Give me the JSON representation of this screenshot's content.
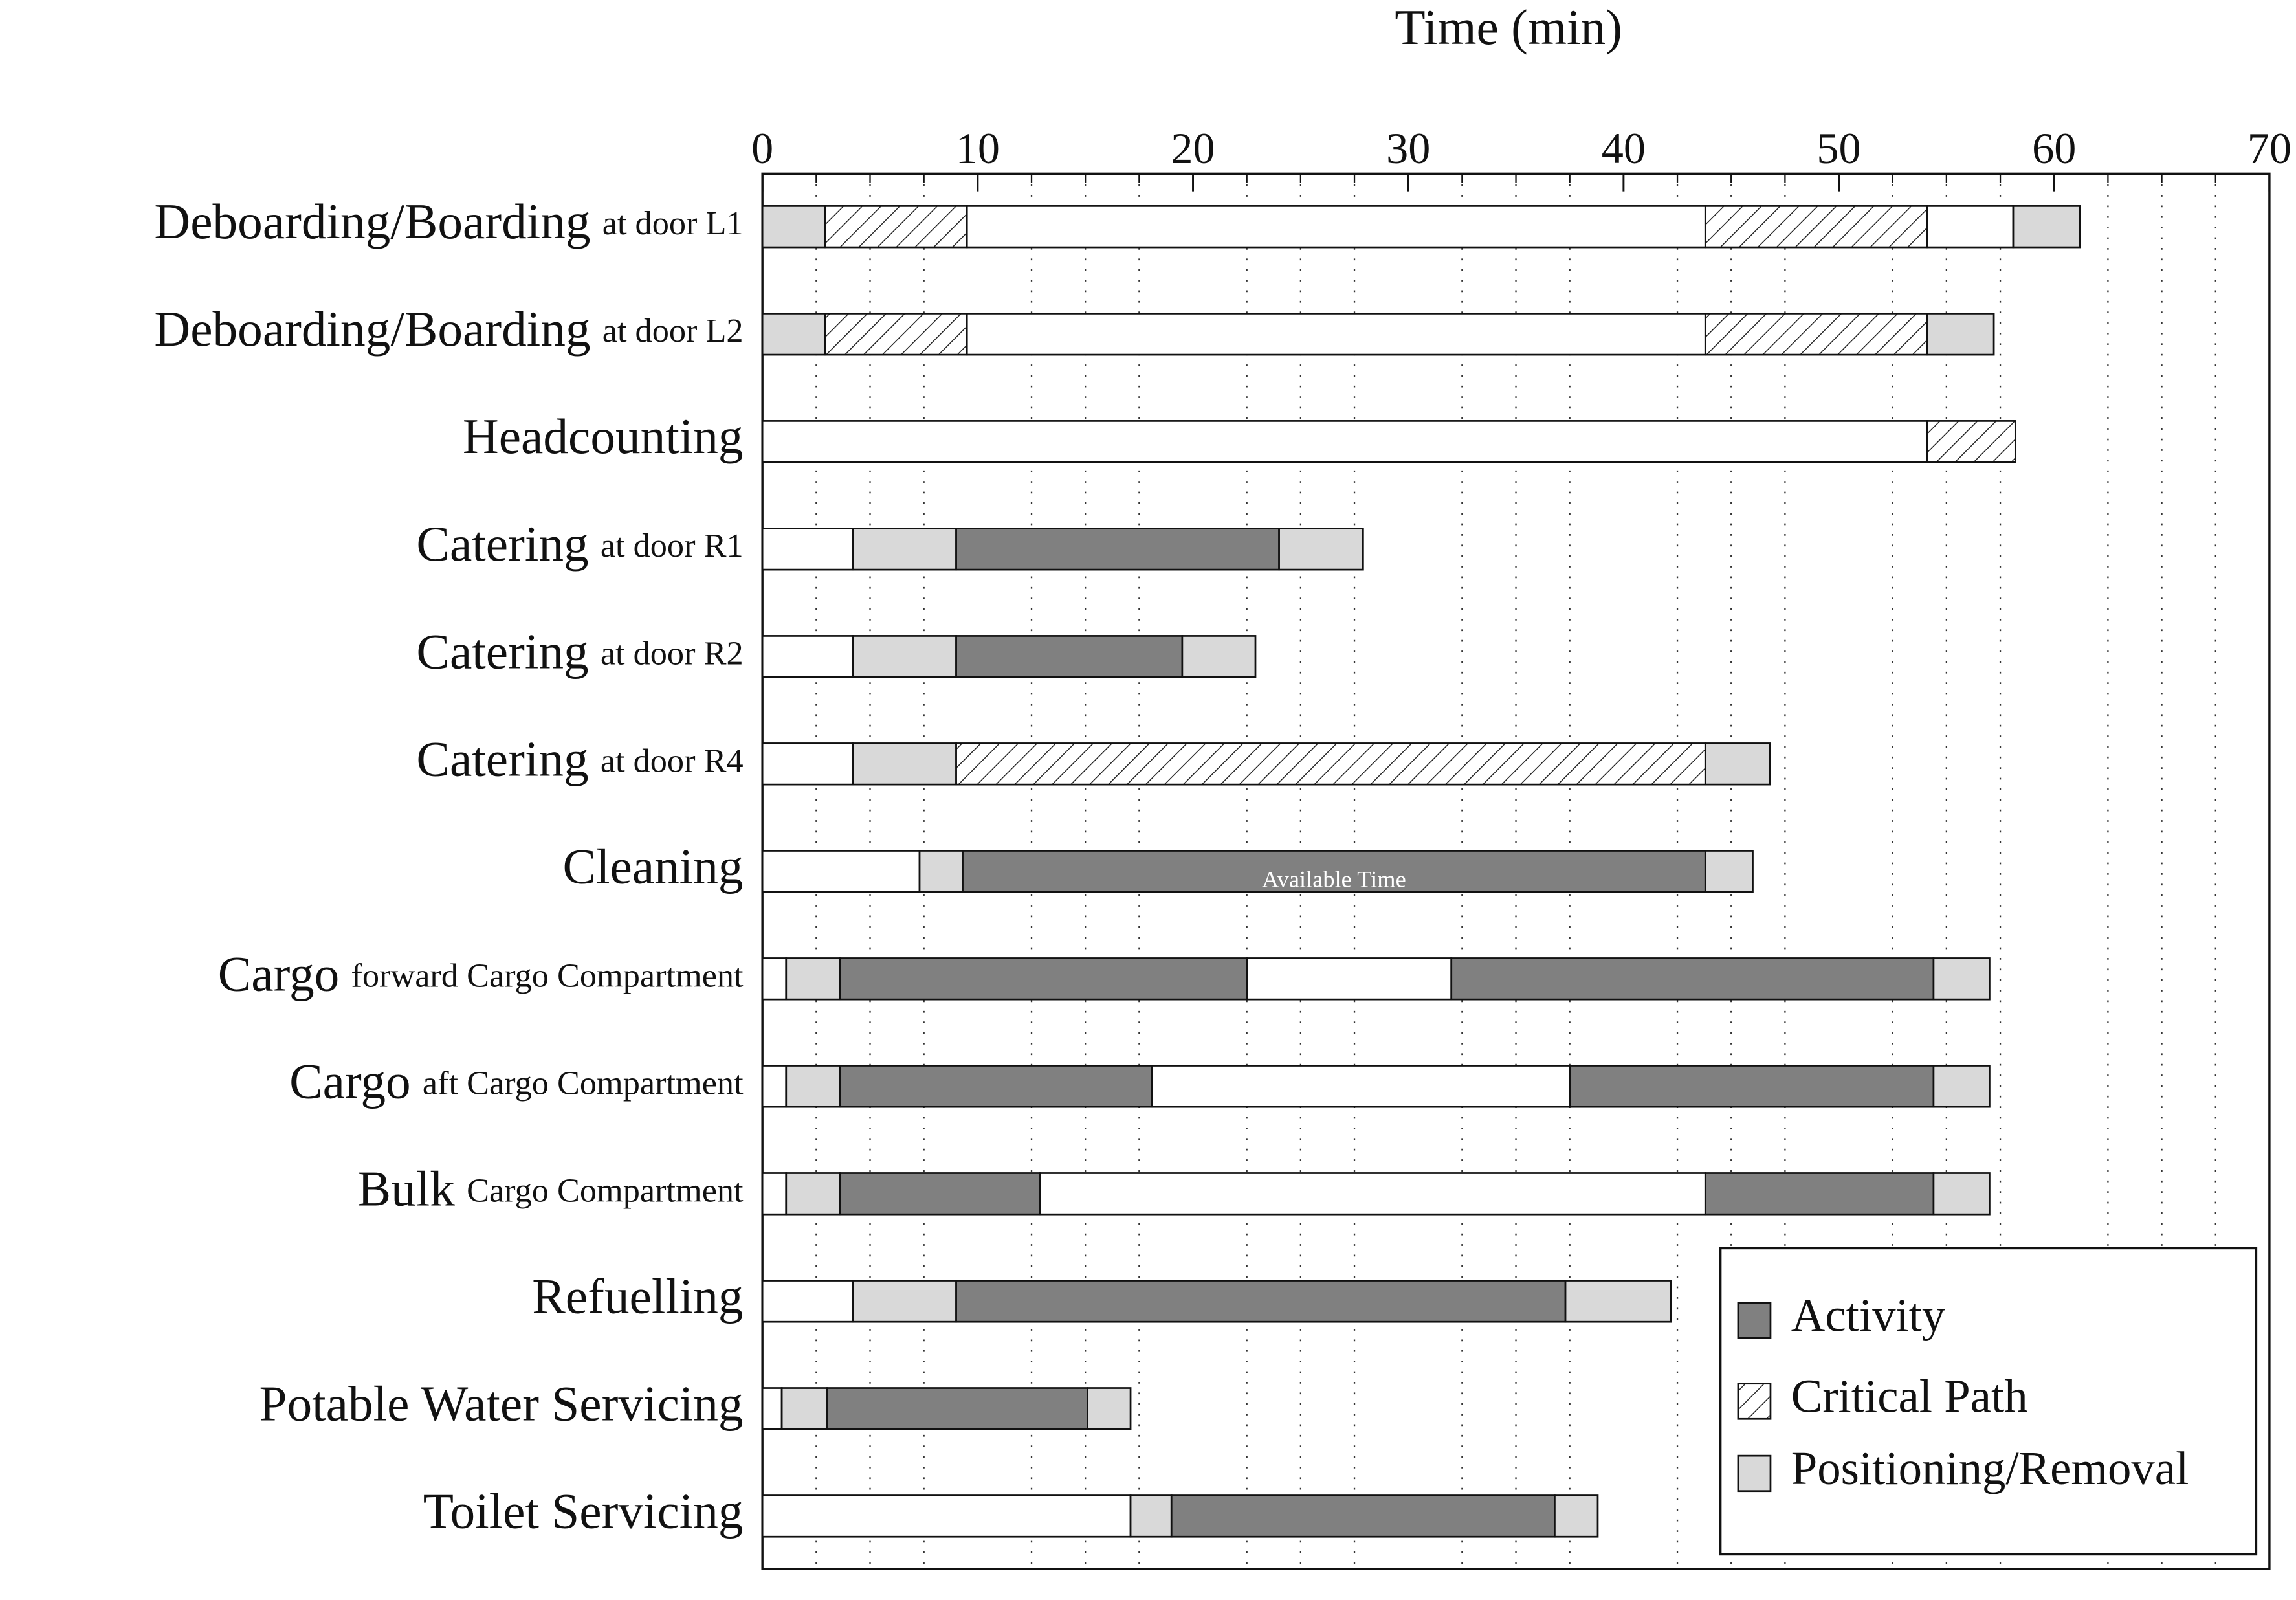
{
  "chart_data": {
    "type": "gantt",
    "x_label": "Time (min)",
    "xlim": [
      0,
      70
    ],
    "xticks": [
      0,
      10,
      20,
      30,
      40,
      50,
      60,
      70
    ],
    "xminorticks": [
      2.5,
      5,
      7.5,
      12.5,
      15,
      17.5,
      22.5,
      25,
      27.5,
      32.5,
      35,
      37.5,
      42.5,
      45,
      47.5,
      52.5,
      55,
      57.5,
      62.5,
      65,
      67.5
    ],
    "grid": true,
    "legend": [
      {
        "name": "Activity",
        "color": "#808080",
        "hatch": false
      },
      {
        "name": "Critical Path",
        "color": "#ffffff",
        "hatch": true
      },
      {
        "name": "Positioning/Removal",
        "color": "#d9d9d9",
        "hatch": false
      }
    ],
    "legend_position": "lower right",
    "rows": [
      {
        "name": "Deboarding/Boarding",
        "detail": "at door L1",
        "segments": [
          {
            "duration": 2.9,
            "legend": 2
          },
          {
            "duration": 6.6,
            "legend": 1
          },
          {
            "duration": 34.3,
            "legend": null
          },
          {
            "duration": 10.3,
            "legend": 1
          },
          {
            "duration": 4.0,
            "legend": null
          },
          {
            "duration": 3.1,
            "legend": 2
          }
        ]
      },
      {
        "name": "Deboarding/Boarding",
        "detail": "at door L2",
        "segments": [
          {
            "duration": 2.9,
            "legend": 2
          },
          {
            "duration": 6.6,
            "legend": 1
          },
          {
            "duration": 34.3,
            "legend": null
          },
          {
            "duration": 10.3,
            "legend": 1
          },
          {
            "duration": 3.1,
            "legend": 2
          }
        ]
      },
      {
        "name": "Headcounting",
        "detail": null,
        "segments": [
          {
            "duration": 54.1,
            "legend": null
          },
          {
            "duration": 4.1,
            "legend": 1
          }
        ]
      },
      {
        "name": "Catering",
        "detail": "at door R1",
        "segments": [
          {
            "duration": 4.2,
            "legend": null
          },
          {
            "duration": 4.8,
            "legend": 2
          },
          {
            "duration": 15.0,
            "legend": 0
          },
          {
            "duration": 3.9,
            "legend": 2
          }
        ]
      },
      {
        "name": "Catering",
        "detail": "at door R2",
        "segments": [
          {
            "duration": 4.2,
            "legend": null
          },
          {
            "duration": 4.8,
            "legend": 2
          },
          {
            "duration": 10.5,
            "legend": 0
          },
          {
            "duration": 3.4,
            "legend": 2
          }
        ]
      },
      {
        "name": "Catering",
        "detail": "at door R4",
        "segments": [
          {
            "duration": 4.2,
            "legend": null
          },
          {
            "duration": 4.8,
            "legend": 2
          },
          {
            "duration": 34.8,
            "legend": 1
          },
          {
            "duration": 3.0,
            "legend": 2
          }
        ]
      },
      {
        "name": "Cleaning",
        "detail": null,
        "segments": [
          {
            "duration": 7.3,
            "legend": null
          },
          {
            "duration": 2.0,
            "legend": 2
          },
          {
            "duration": 34.5,
            "legend": 0,
            "label": "Available Time"
          },
          {
            "duration": 2.2,
            "legend": 2
          }
        ]
      },
      {
        "name": "Cargo",
        "detail": "forward Cargo Compartment",
        "segments": [
          {
            "duration": 1.1,
            "legend": null
          },
          {
            "duration": 2.5,
            "legend": 2
          },
          {
            "duration": 18.9,
            "legend": 0
          },
          {
            "duration": 9.5,
            "legend": null
          },
          {
            "duration": 22.4,
            "legend": 0
          },
          {
            "duration": 2.6,
            "legend": 2
          }
        ]
      },
      {
        "name": "Cargo",
        "detail": "aft Cargo Compartment",
        "segments": [
          {
            "duration": 1.1,
            "legend": null
          },
          {
            "duration": 2.5,
            "legend": 2
          },
          {
            "duration": 14.5,
            "legend": 0
          },
          {
            "duration": 19.4,
            "legend": null
          },
          {
            "duration": 16.9,
            "legend": 0
          },
          {
            "duration": 2.6,
            "legend": 2
          }
        ]
      },
      {
        "name": "Bulk",
        "detail": "Cargo Compartment",
        "segments": [
          {
            "duration": 1.1,
            "legend": null
          },
          {
            "duration": 2.5,
            "legend": 2
          },
          {
            "duration": 9.3,
            "legend": 0
          },
          {
            "duration": 30.9,
            "legend": null
          },
          {
            "duration": 10.6,
            "legend": 0
          },
          {
            "duration": 2.6,
            "legend": 2
          }
        ]
      },
      {
        "name": "Refuelling",
        "detail": null,
        "segments": [
          {
            "duration": 4.2,
            "legend": null
          },
          {
            "duration": 4.8,
            "legend": 2
          },
          {
            "duration": 28.3,
            "legend": 0
          },
          {
            "duration": 4.9,
            "legend": 2
          }
        ]
      },
      {
        "name": "Potable Water Servicing",
        "detail": null,
        "segments": [
          {
            "duration": 0.9,
            "legend": null
          },
          {
            "duration": 2.1,
            "legend": 2
          },
          {
            "duration": 12.1,
            "legend": 0
          },
          {
            "duration": 2.0,
            "legend": 2
          }
        ]
      },
      {
        "name": "Toilet Servicing",
        "detail": null,
        "segments": [
          {
            "duration": 17.1,
            "legend": null
          },
          {
            "duration": 1.9,
            "legend": 2
          },
          {
            "duration": 17.8,
            "legend": 0
          },
          {
            "duration": 2.0,
            "legend": 2
          }
        ]
      }
    ]
  }
}
